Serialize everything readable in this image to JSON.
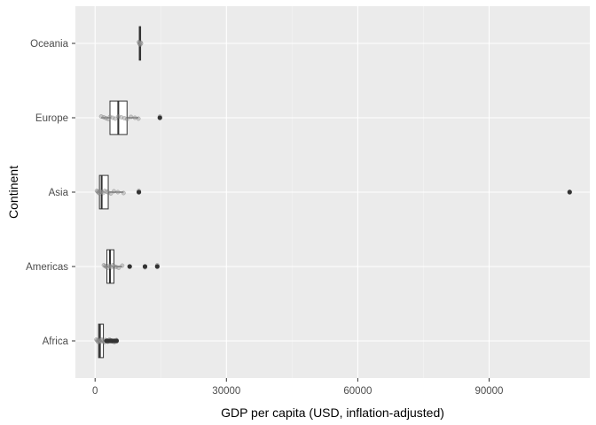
{
  "chart_data": {
    "type": "boxplot",
    "orientation": "horizontal",
    "xlabel": "GDP per capita (USD, inflation-adjusted)",
    "ylabel": "Continent",
    "xlim": [
      -4500,
      113000
    ],
    "x_ticks": [
      0,
      30000,
      60000,
      90000
    ],
    "x_tick_labels": [
      "0",
      "30000",
      "60000",
      "90000"
    ],
    "categories": [
      "Africa",
      "Americas",
      "Asia",
      "Europe",
      "Oceania"
    ],
    "grid": true,
    "legend": "none",
    "colors": {
      "panel_background": "#ebebeb",
      "grid_major": "#ffffff",
      "grid_minor": "#f5f5f5",
      "box_fill": "#ffffff",
      "box_outline": "#333333",
      "outlier": "#333333",
      "jitter_point": "#999999"
    },
    "boxes": [
      {
        "category": "Africa",
        "min": 300,
        "q1": 800,
        "median": 1100,
        "q3": 1900,
        "max": 2400,
        "outliers": [
          2600,
          2900,
          3300,
          3600,
          3900,
          4400,
          4900
        ],
        "points": [
          300,
          500,
          600,
          800,
          1000,
          1100,
          1300,
          1500,
          1700,
          1900,
          2100,
          2400,
          2600,
          2900,
          3300,
          3600,
          3900,
          4400,
          4900
        ]
      },
      {
        "category": "Americas",
        "min": 2000,
        "q1": 2700,
        "median": 3400,
        "q3": 4300,
        "max": 6200,
        "outliers": [
          7900,
          11400,
          14200
        ],
        "points": [
          2000,
          2300,
          2600,
          2900,
          3200,
          3400,
          3700,
          4000,
          4300,
          4800,
          5400,
          6200,
          7900,
          11400,
          14200
        ]
      },
      {
        "category": "Asia",
        "min": 400,
        "q1": 1000,
        "median": 1500,
        "q3": 3000,
        "max": 6500,
        "outliers": [
          10000,
          108400
        ],
        "points": [
          400,
          600,
          800,
          1000,
          1200,
          1500,
          1800,
          2200,
          2600,
          3000,
          3600,
          4300,
          5200,
          6500,
          10000,
          108400
        ]
      },
      {
        "category": "Europe",
        "min": 1400,
        "q1": 3400,
        "median": 5300,
        "q3": 7300,
        "max": 9900,
        "outliers": [
          14800
        ],
        "points": [
          1400,
          2000,
          2500,
          3000,
          3400,
          4000,
          4600,
          5300,
          6000,
          6700,
          7300,
          8200,
          9100,
          9900,
          14800
        ]
      },
      {
        "category": "Oceania",
        "min": 10000,
        "q1": 10100,
        "median": 10250,
        "q3": 10400,
        "max": 10500,
        "outliers": [],
        "points": [
          10000,
          10100,
          10200,
          10300,
          10400,
          10500
        ]
      }
    ]
  }
}
